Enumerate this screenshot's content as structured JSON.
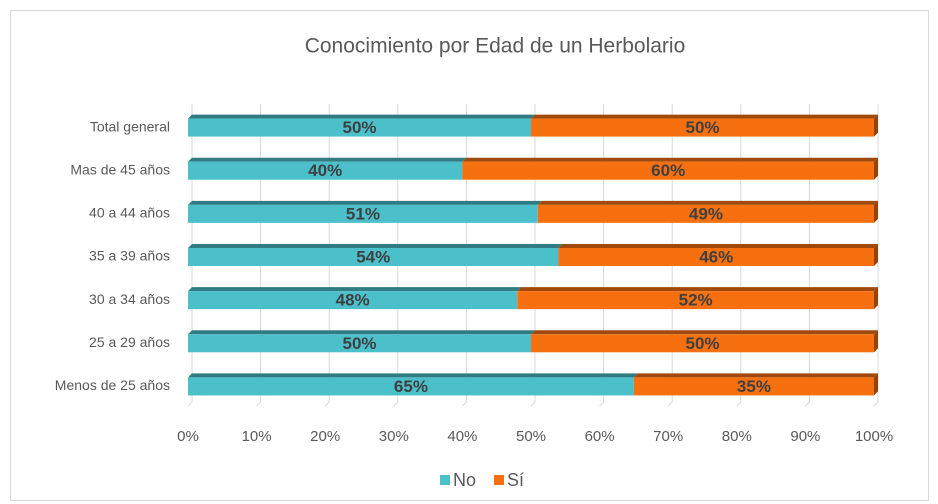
{
  "chart_data": {
    "type": "stacked_barh",
    "title": "Conocimiento por Edad de un Herbolario",
    "categories": [
      "Total general",
      "Mas de 45 años",
      "40 a 44 años",
      "35 a 39 años",
      "30 a 34 años",
      "25 a 29 años",
      "Menos de 25 años"
    ],
    "series": [
      {
        "name": "No",
        "color": "#4bbfca",
        "values": [
          50,
          40,
          51,
          54,
          48,
          50,
          65
        ],
        "value_labels": [
          "50%",
          "40%",
          "51%",
          "54%",
          "48%",
          "50%",
          "65%"
        ]
      },
      {
        "name": "Sí",
        "color": "#f7700f",
        "values": [
          50,
          60,
          49,
          46,
          52,
          50,
          35
        ],
        "value_labels": [
          "50%",
          "60%",
          "49%",
          "46%",
          "52%",
          "50%",
          "35%"
        ]
      }
    ],
    "xlim": [
      0,
      100
    ],
    "xticks": [
      {
        "value": 0,
        "label": "0%"
      },
      {
        "value": 10,
        "label": "10%"
      },
      {
        "value": 20,
        "label": "20%"
      },
      {
        "value": 30,
        "label": "30%"
      },
      {
        "value": 40,
        "label": "40%"
      },
      {
        "value": 50,
        "label": "50%"
      },
      {
        "value": 60,
        "label": "60%"
      },
      {
        "value": 70,
        "label": "70%"
      },
      {
        "value": 80,
        "label": "80%"
      },
      {
        "value": 90,
        "label": "90%"
      },
      {
        "value": 100,
        "label": "100%"
      }
    ],
    "grid": true,
    "legend": "bottom"
  }
}
